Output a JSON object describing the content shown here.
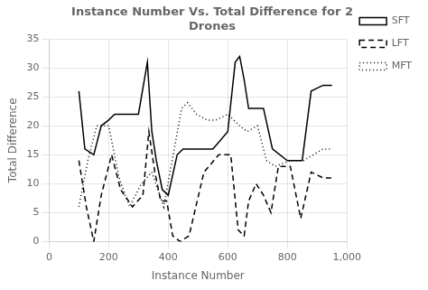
{
  "chart_data": {
    "type": "line",
    "title": "Instance Number Vs. Total Difference for 2\nDrones",
    "x_label": "Instance Number",
    "y_label": "Total Difference",
    "xlim": [
      0,
      1000
    ],
    "ylim": [
      0,
      35
    ],
    "xticks": [
      0,
      200,
      400,
      600,
      800,
      1000
    ],
    "yticks": [
      0,
      5,
      10,
      15,
      20,
      25,
      30,
      35
    ],
    "grid": true,
    "legend": "right",
    "series": [
      {
        "name": "SFT",
        "color": "#000000",
        "line_style": "solid",
        "x": [
          100,
          120,
          150,
          175,
          200,
          220,
          250,
          300,
          330,
          345,
          360,
          380,
          400,
          430,
          450,
          500,
          550,
          600,
          625,
          640,
          655,
          670,
          700,
          720,
          750,
          800,
          850,
          880,
          920,
          950
        ],
        "values": [
          26,
          16,
          15,
          20,
          21,
          22,
          22,
          22,
          31,
          19,
          14,
          9,
          8,
          15,
          16,
          16,
          16,
          19,
          31,
          32,
          28,
          23,
          23,
          23,
          16,
          14,
          14,
          26,
          27,
          27
        ]
      },
      {
        "name": "LFT",
        "color": "#000000",
        "line_style": "dashed",
        "x": [
          100,
          125,
          150,
          175,
          210,
          240,
          280,
          315,
          335,
          355,
          375,
          395,
          415,
          440,
          470,
          520,
          570,
          610,
          635,
          655,
          670,
          695,
          720,
          745,
          770,
          810,
          845,
          880,
          920,
          950
        ],
        "values": [
          14,
          6,
          0,
          8,
          15,
          9,
          6,
          8,
          19,
          12,
          7,
          7,
          1,
          0,
          1,
          12,
          15,
          15,
          2,
          1,
          7,
          10,
          8,
          5,
          13,
          13,
          4,
          12,
          11,
          11
        ]
      },
      {
        "name": "MFT",
        "color": "#000000",
        "line_style": "dotted",
        "x": [
          100,
          130,
          160,
          200,
          235,
          270,
          310,
          345,
          385,
          445,
          465,
          495,
          530,
          560,
          600,
          640,
          665,
          700,
          730,
          760,
          810,
          855,
          920,
          950
        ],
        "values": [
          6,
          14,
          20,
          20,
          11,
          6,
          10,
          12,
          6,
          23,
          24,
          22,
          21,
          21,
          22,
          20,
          19,
          20,
          14,
          13,
          14,
          14,
          16,
          16
        ]
      }
    ]
  }
}
